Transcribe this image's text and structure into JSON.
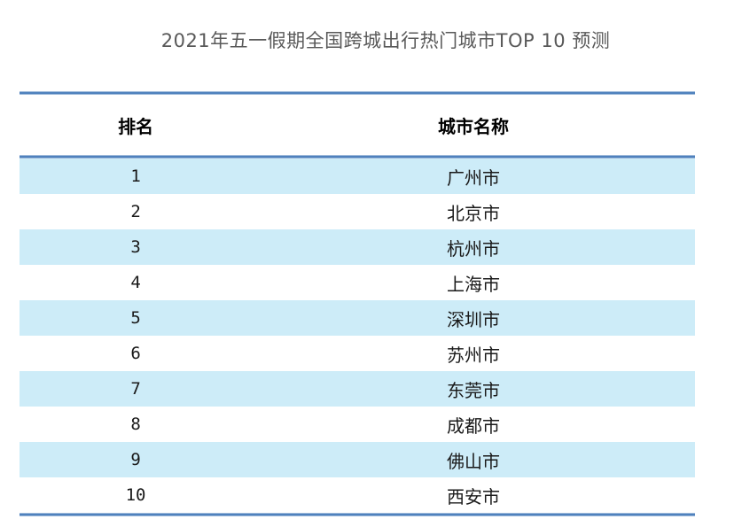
{
  "title": "2021年五一假期全国跨城出行热门城市TOP 10 预测",
  "table": {
    "columns": [
      {
        "label": "排名"
      },
      {
        "label": "城市名称"
      }
    ],
    "rows": [
      {
        "rank": "1",
        "city": "广州市"
      },
      {
        "rank": "2",
        "city": "北京市"
      },
      {
        "rank": "3",
        "city": "杭州市"
      },
      {
        "rank": "4",
        "city": "上海市"
      },
      {
        "rank": "5",
        "city": "深圳市"
      },
      {
        "rank": "6",
        "city": "苏州市"
      },
      {
        "rank": "7",
        "city": "东莞市"
      },
      {
        "rank": "8",
        "city": "成都市"
      },
      {
        "rank": "9",
        "city": "佛山市"
      },
      {
        "rank": "10",
        "city": "西安市"
      }
    ]
  },
  "colors": {
    "stripe": "#cdecf8",
    "rule_core": "#4f81bd",
    "rule_edge": "#9db9da",
    "title_color": "#595959",
    "header_text": "#000000",
    "body_text": "#1a1a1a"
  },
  "chart_data": {
    "type": "table",
    "title": "2021年五一假期全国跨城出行热门城市TOP 10 预测",
    "columns": [
      "排名",
      "城市名称"
    ],
    "rows": [
      [
        1,
        "广州市"
      ],
      [
        2,
        "北京市"
      ],
      [
        3,
        "杭州市"
      ],
      [
        4,
        "上海市"
      ],
      [
        5,
        "深圳市"
      ],
      [
        6,
        "苏州市"
      ],
      [
        7,
        "东莞市"
      ],
      [
        8,
        "成都市"
      ],
      [
        9,
        "佛山市"
      ],
      [
        10,
        "西安市"
      ]
    ],
    "layout": {
      "zebra_striping": true,
      "stripe_rows": "odd",
      "grid": false,
      "rules": "horizontal top/header/bottom only"
    }
  }
}
